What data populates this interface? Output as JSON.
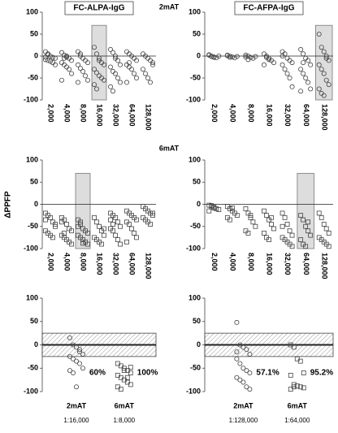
{
  "figure": {
    "row_labels": [
      "2mAT",
      "6mAT"
    ],
    "y_label": "ΔPPFP"
  },
  "chart_data": [
    {
      "type": "strip",
      "title": "FC-ALPA-IgG",
      "marker": "circle",
      "categories": [
        "2,000",
        "4,000",
        "8,000",
        "16,000",
        "32,000",
        "64,000",
        "128,000"
      ],
      "ylim": [
        -100,
        100
      ],
      "yticks": [
        100,
        50,
        0,
        -50,
        -100
      ],
      "highlight_index": 3,
      "highlight_top": 70,
      "values": [
        [
          10,
          5,
          0,
          -3,
          -5,
          -8,
          -10,
          -12,
          -15,
          -20,
          -2,
          3
        ],
        [
          8,
          2,
          -2,
          -5,
          -10,
          -15,
          -20,
          -25,
          -30,
          -40,
          -55,
          -5,
          0
        ],
        [
          10,
          5,
          -5,
          -10,
          -15,
          -20,
          -28,
          -35,
          -45,
          -55,
          -60,
          0
        ],
        [
          20,
          5,
          -5,
          -15,
          -20,
          -30,
          -38,
          -45,
          -50,
          -55,
          -65,
          -75,
          -10
        ],
        [
          15,
          8,
          0,
          -10,
          -20,
          -25,
          -35,
          -40,
          -50,
          -60,
          -70,
          -80,
          -5
        ],
        [
          10,
          5,
          0,
          -5,
          -10,
          -20,
          -25,
          -30,
          -40,
          -50,
          -60,
          -15
        ],
        [
          5,
          0,
          -5,
          -10,
          -20,
          -30,
          -40,
          -50,
          -60,
          -15
        ]
      ]
    },
    {
      "type": "strip",
      "title": "FC-AFPA-IgG",
      "marker": "circle",
      "categories": [
        "2,000",
        "4,000",
        "8,000",
        "16,000",
        "32,000",
        "64,000",
        "128,000"
      ],
      "ylim": [
        -100,
        100
      ],
      "yticks": [
        100,
        50,
        0,
        -50,
        -100
      ],
      "highlight_index": 6,
      "highlight_top": 70,
      "values": [
        [
          3,
          0,
          -2,
          -4,
          0,
          2,
          -1,
          -3
        ],
        [
          2,
          0,
          -2,
          -4,
          -1,
          1,
          -3
        ],
        [
          2,
          0,
          -3,
          -5,
          -1,
          -2,
          -8
        ],
        [
          5,
          0,
          -5,
          -10,
          -15,
          -20,
          -3,
          -8
        ],
        [
          10,
          5,
          -5,
          -10,
          -15,
          -20,
          -30,
          -40,
          -50,
          -70,
          0
        ],
        [
          15,
          5,
          -5,
          -10,
          -20,
          -30,
          -40,
          -50,
          -60,
          -75,
          -80,
          -15
        ],
        [
          50,
          20,
          10,
          0,
          -10,
          -20,
          -30,
          -40,
          -55,
          -65,
          -75,
          -85,
          -90,
          -5
        ]
      ]
    },
    {
      "type": "strip",
      "marker": "square",
      "categories": [
        "2,000",
        "4,000",
        "8,000",
        "16,000",
        "32,000",
        "64,000",
        "128,000"
      ],
      "ylim": [
        -100,
        100
      ],
      "yticks": [
        100,
        50,
        0,
        -50,
        -100
      ],
      "highlight_index": 2,
      "highlight_top": 70,
      "values": [
        [
          -20,
          -25,
          -30,
          -40,
          -50,
          -60,
          -65,
          -70,
          -75,
          -45,
          -35
        ],
        [
          -30,
          -35,
          -45,
          -55,
          -60,
          -70,
          -75,
          -80,
          -85,
          -90,
          -40,
          -65
        ],
        [
          -35,
          -45,
          -55,
          -60,
          -65,
          -70,
          -75,
          -80,
          -85,
          -90,
          -50,
          -40,
          -88
        ],
        [
          -30,
          -40,
          -50,
          -60,
          -70,
          -75,
          -80,
          -85,
          -90,
          -55
        ],
        [
          -20,
          -25,
          -30,
          -40,
          -50,
          -55,
          -60,
          -70,
          -80,
          -90,
          -35,
          -45
        ],
        [
          -15,
          -20,
          -25,
          -30,
          -35,
          -40,
          -45,
          -55,
          -65,
          -75,
          -85
        ],
        [
          -5,
          -10,
          -15,
          -20,
          -25,
          -30,
          -35,
          -40,
          -45,
          -20
        ]
      ]
    },
    {
      "type": "strip",
      "marker": "square",
      "categories": [
        "2,000",
        "4,000",
        "8,000",
        "16,000",
        "32,000",
        "64,000",
        "128,000"
      ],
      "ylim": [
        -100,
        100
      ],
      "yticks": [
        100,
        50,
        0,
        -50,
        -100
      ],
      "highlight_index": 5,
      "highlight_top": 70,
      "values": [
        [
          -2,
          -5,
          -8,
          -10,
          -12,
          -15,
          -3,
          -6
        ],
        [
          -5,
          -10,
          -15,
          -20,
          -25,
          -30,
          -35,
          -8
        ],
        [
          -10,
          -20,
          -30,
          -40,
          -50,
          -60,
          -65,
          -25
        ],
        [
          -15,
          -25,
          -35,
          -45,
          -55,
          -65,
          -75,
          -80,
          -30
        ],
        [
          -20,
          -30,
          -45,
          -60,
          -70,
          -75,
          -80,
          -85,
          -90,
          -95,
          -50
        ],
        [
          -25,
          -35,
          -50,
          -60,
          -70,
          -80,
          -90,
          -95,
          -40
        ],
        [
          -20,
          -30,
          -45,
          -55,
          -65,
          -75,
          -80,
          -85,
          -90,
          -95
        ]
      ]
    },
    {
      "type": "summary",
      "markers": [
        "circle",
        "square"
      ],
      "categories": [
        "2mAT",
        "6mAT"
      ],
      "sublabels": [
        "1:16,000",
        "1:8,000"
      ],
      "annotations": [
        "60%",
        "100%"
      ],
      "ylim": [
        -100,
        100
      ],
      "yticks": [
        100,
        50,
        0,
        -50,
        -100
      ],
      "band": [
        -25,
        25
      ],
      "values": [
        [
          15,
          0,
          -5,
          -15,
          -20,
          -25,
          -30,
          -35,
          -40,
          -50,
          -55,
          -60,
          -90,
          -10
        ],
        [
          -40,
          -45,
          -50,
          -55,
          -60,
          -65,
          -70,
          -75,
          -80,
          -85,
          -90,
          -95,
          -55,
          -70,
          -48
        ]
      ]
    },
    {
      "type": "summary",
      "markers": [
        "circle",
        "square"
      ],
      "categories": [
        "2mAT",
        "6mAT"
      ],
      "sublabels": [
        "1:128,000",
        "1:64,000"
      ],
      "annotations": [
        "57.1%",
        "95.2%"
      ],
      "ylim": [
        -100,
        100
      ],
      "yticks": [
        100,
        50,
        0,
        -50,
        -100
      ],
      "band": [
        -25,
        25
      ],
      "values": [
        [
          48,
          0,
          -5,
          -10,
          -20,
          -30,
          -40,
          -50,
          -55,
          -60,
          -70,
          -75,
          -80,
          -90,
          -95,
          -15
        ],
        [
          0,
          -5,
          -30,
          -35,
          -60,
          -65,
          -85,
          -88,
          -90,
          -92,
          -95,
          -90
        ]
      ]
    }
  ]
}
